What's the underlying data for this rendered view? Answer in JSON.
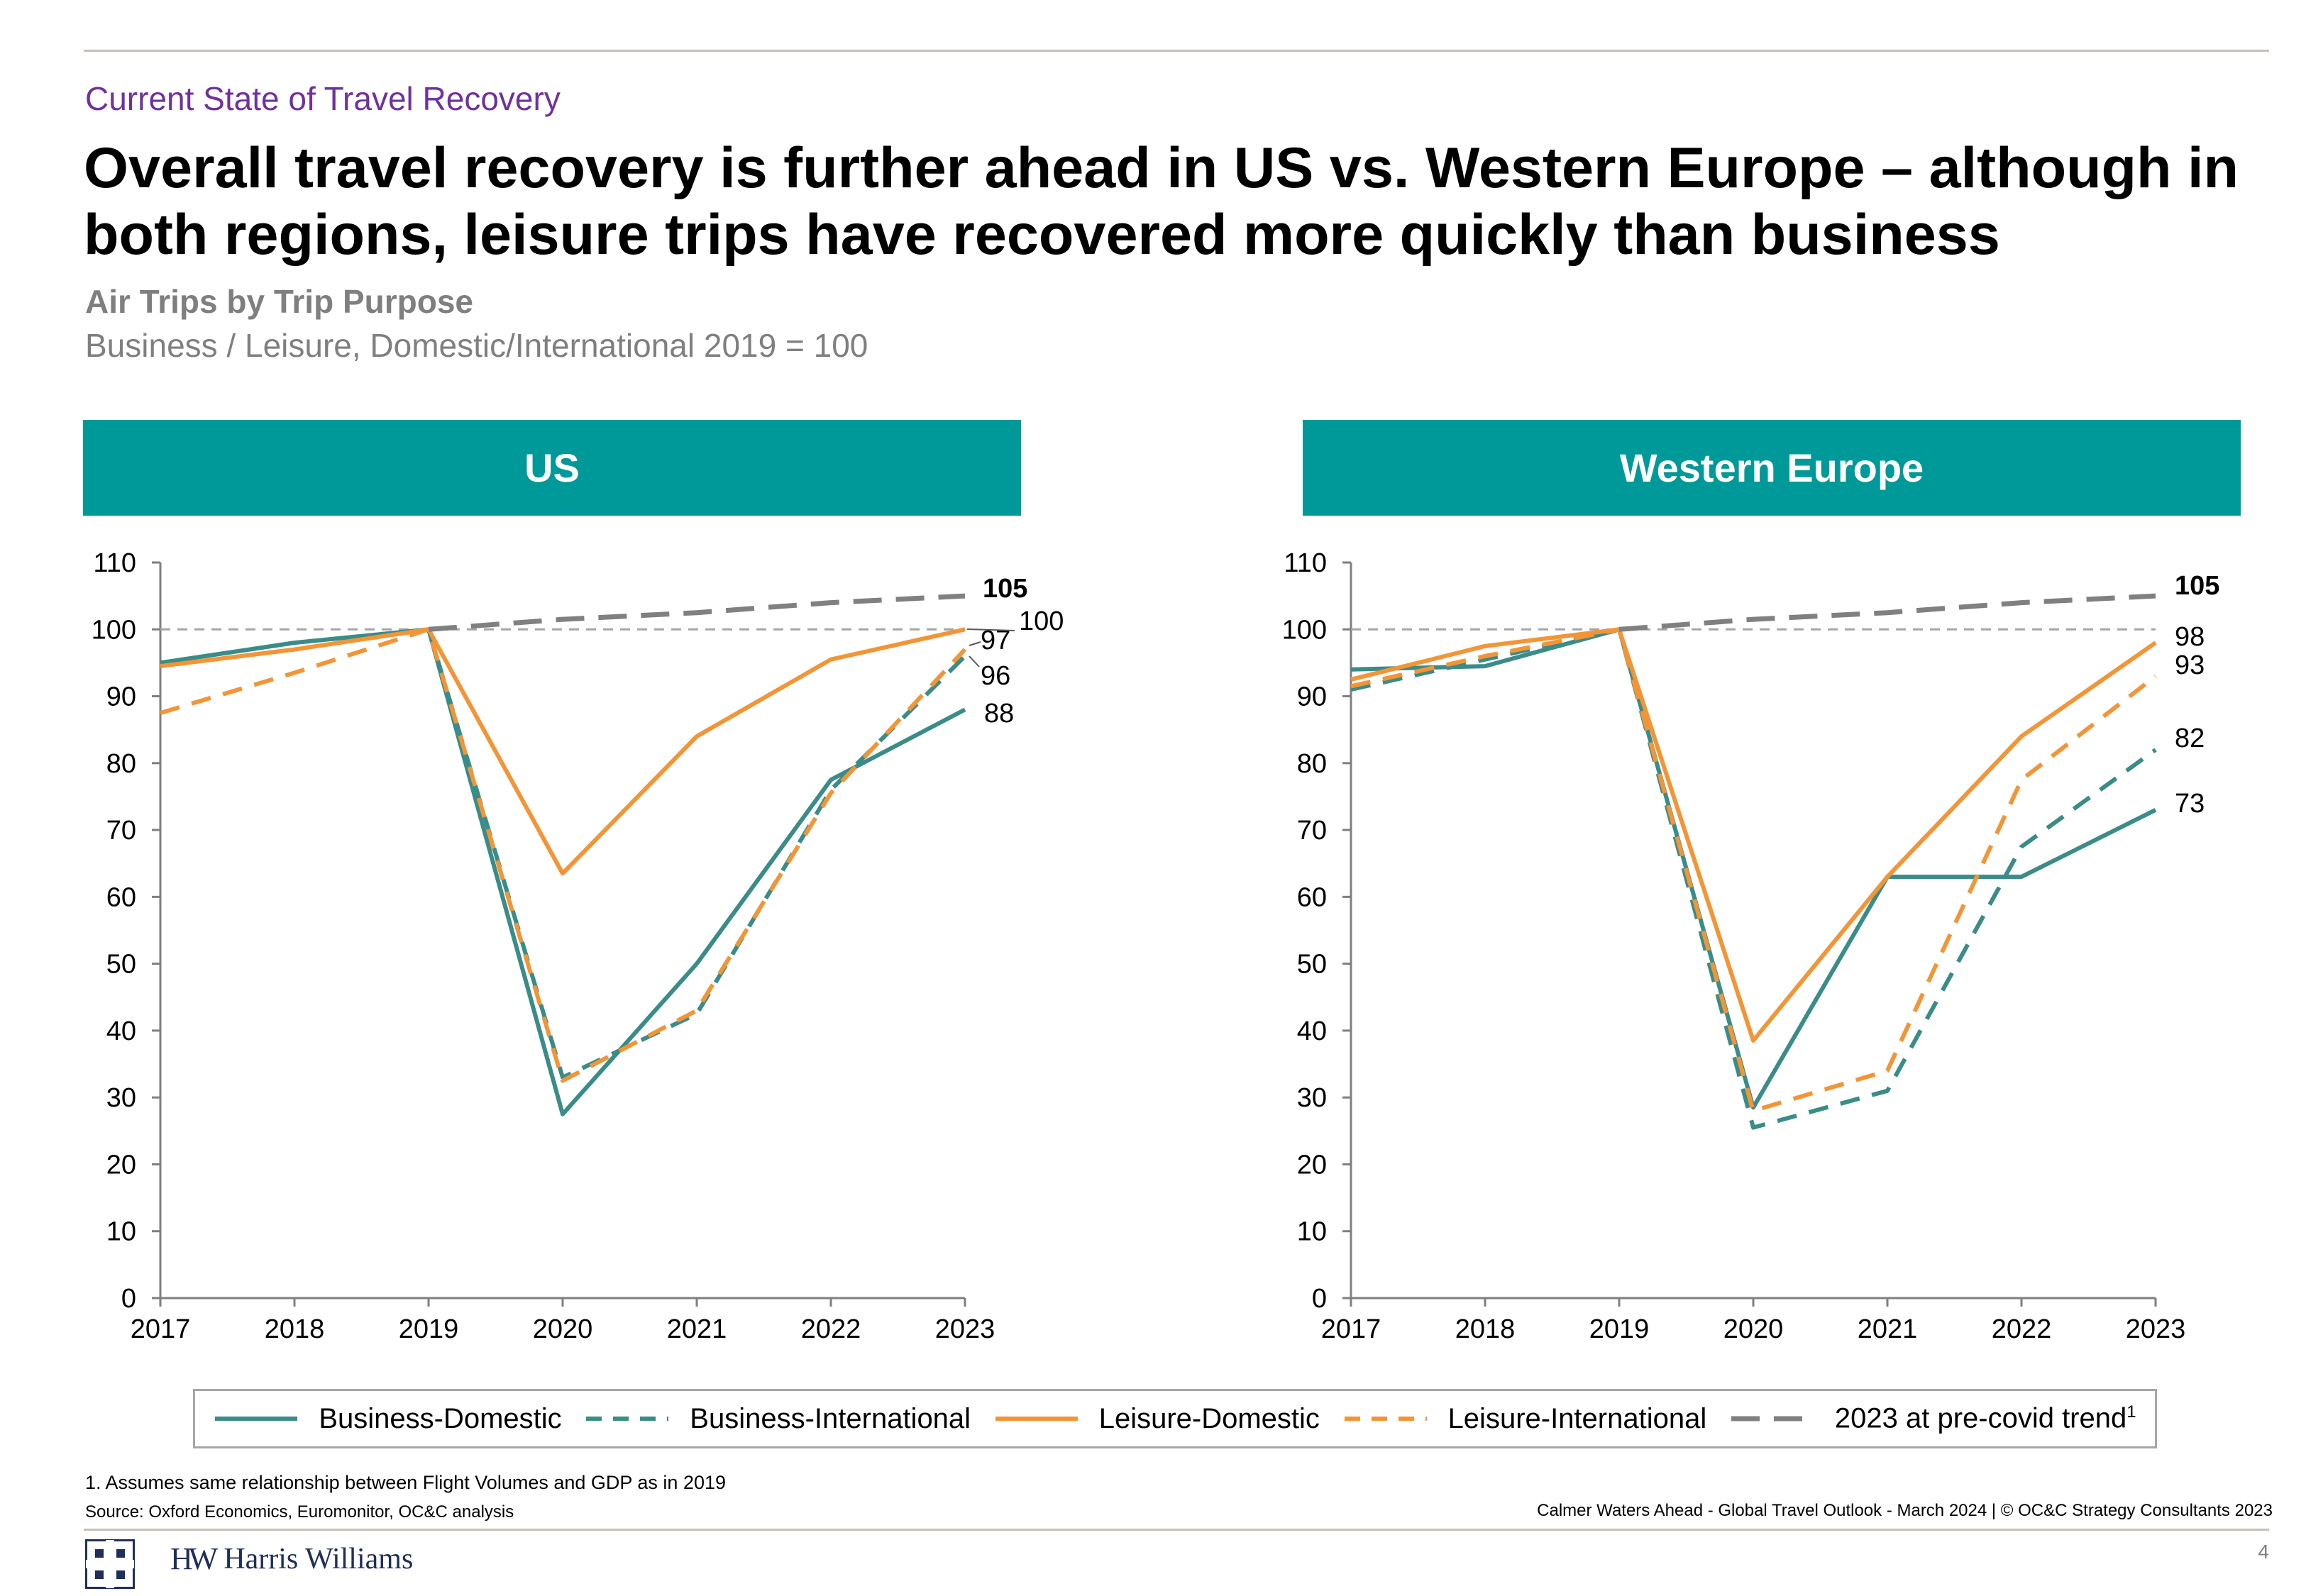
{
  "header": {
    "section": "Current State of Travel Recovery",
    "title": "Overall travel recovery is further ahead in US vs. Western Europe – although in both regions, leisure trips have recovered more quickly than business",
    "subtitle": "Air Trips by Trip Purpose",
    "subtitle2": "Business / Leisure, Domestic/International 2019 = 100"
  },
  "panels": {
    "us": "US",
    "we": "Western Europe"
  },
  "chart_data": [
    {
      "type": "line",
      "title": "US",
      "x": [
        "2017",
        "2018",
        "2019",
        "2020",
        "2021",
        "2022",
        "2023"
      ],
      "yticks": [
        "0",
        "10",
        "20",
        "30",
        "40",
        "50",
        "60",
        "70",
        "80",
        "90",
        "100",
        "110"
      ],
      "ylim": [
        0,
        110
      ],
      "reference_line": 100,
      "series": [
        {
          "name": "Business-Domestic",
          "values": [
            95,
            98,
            100,
            27.5,
            50,
            77.5,
            88
          ]
        },
        {
          "name": "Business-International",
          "values": [
            null,
            null,
            100,
            33,
            42.5,
            76,
            96
          ]
        },
        {
          "name": "Leisure-Domestic",
          "values": [
            94.5,
            97,
            100,
            63.5,
            84,
            95.5,
            100
          ]
        },
        {
          "name": "Leisure-International",
          "values": [
            87.5,
            93.5,
            100,
            32.5,
            43,
            75.5,
            97
          ]
        },
        {
          "name": "2023 at pre-covid trend",
          "values": [
            null,
            null,
            100,
            101.5,
            102.5,
            104,
            105
          ]
        }
      ],
      "end_labels": [
        "105",
        "100",
        "97",
        "96",
        "88"
      ]
    },
    {
      "type": "line",
      "title": "Western Europe",
      "x": [
        "2017",
        "2018",
        "2019",
        "2020",
        "2021",
        "2022",
        "2023"
      ],
      "yticks": [
        "0",
        "10",
        "20",
        "30",
        "40",
        "50",
        "60",
        "70",
        "80",
        "90",
        "100",
        "110"
      ],
      "ylim": [
        0,
        110
      ],
      "reference_line": 100,
      "series": [
        {
          "name": "Business-Domestic",
          "values": [
            94,
            94.5,
            100,
            28.5,
            63,
            63,
            73
          ]
        },
        {
          "name": "Business-International",
          "values": [
            91,
            95.5,
            100,
            25.5,
            31,
            67.5,
            82
          ]
        },
        {
          "name": "Leisure-Domestic",
          "values": [
            92.5,
            97.5,
            100,
            38.5,
            63,
            84,
            98
          ]
        },
        {
          "name": "Leisure-International",
          "values": [
            91.5,
            96,
            100,
            28,
            34,
            77.5,
            93
          ]
        },
        {
          "name": "2023 at pre-covid trend",
          "values": [
            null,
            null,
            100,
            101.5,
            102.5,
            104,
            105
          ]
        }
      ],
      "end_labels": [
        "105",
        "98",
        "93",
        "82",
        "73"
      ]
    }
  ],
  "legend": [
    {
      "label": "Business-Domestic",
      "sup": ""
    },
    {
      "label": "Business-International",
      "sup": ""
    },
    {
      "label": "Leisure-Domestic",
      "sup": ""
    },
    {
      "label": "Leisure-International",
      "sup": ""
    },
    {
      "label": "2023 at pre-covid trend",
      "sup": "1"
    }
  ],
  "colors": {
    "business": "#3a8c88",
    "leisure": "#f39536",
    "trend": "#808080",
    "reference": "#a6a6a6",
    "panel": "#009999"
  },
  "footer": {
    "footnote": "1. Assumes same relationship between Flight Volumes and GDP as in 2019",
    "source": "Source: Oxford Economics, Euromonitor, OC&C analysis",
    "credit": "Calmer Waters Ahead - Global Travel Outlook - March 2024  | © OC&C Strategy Consultants 2023",
    "page": "4",
    "brand": "Harris Williams",
    "monogram": "HW"
  }
}
